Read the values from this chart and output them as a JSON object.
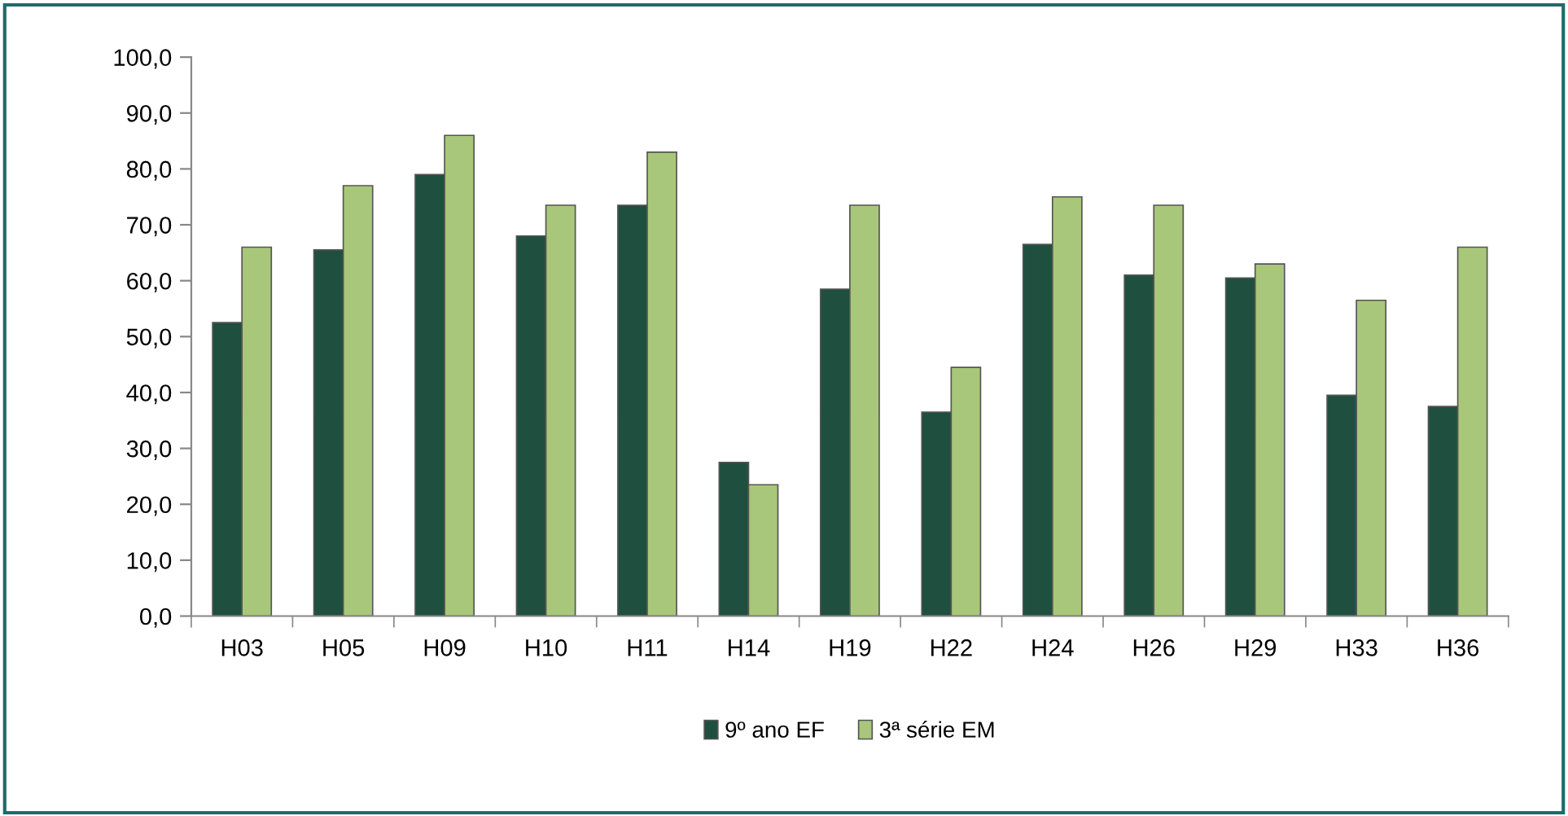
{
  "chart_data": {
    "type": "bar",
    "categories": [
      "H03",
      "H05",
      "H09",
      "H10",
      "H11",
      "H14",
      "H19",
      "H22",
      "H24",
      "H26",
      "H29",
      "H33",
      "H36"
    ],
    "series": [
      {
        "name": "9º ano EF",
        "color": "#1f4f3f",
        "values": [
          52.5,
          65.5,
          79,
          68,
          73.5,
          27.5,
          58.5,
          36.5,
          66.5,
          61,
          60.5,
          39.5,
          37.5
        ]
      },
      {
        "name": "3ª série EM",
        "color": "#a9c77a",
        "values": [
          66,
          77,
          86,
          73.5,
          83,
          23.5,
          73.5,
          44.5,
          75,
          73.5,
          63,
          56.5,
          66
        ]
      }
    ],
    "ylim": [
      0,
      100
    ],
    "yticks": [
      {
        "value": 0,
        "label": "0,0"
      },
      {
        "value": 10,
        "label": "10,0"
      },
      {
        "value": 20,
        "label": "20,0"
      },
      {
        "value": 30,
        "label": "30,0"
      },
      {
        "value": 40,
        "label": "40,0"
      },
      {
        "value": 50,
        "label": "50,0"
      },
      {
        "value": 60,
        "label": "60,0"
      },
      {
        "value": 70,
        "label": "70,0"
      },
      {
        "value": 80,
        "label": "80,0"
      },
      {
        "value": 90,
        "label": "90,0"
      },
      {
        "value": 100,
        "label": "100,0"
      }
    ],
    "grid": false,
    "legend": "bottom"
  }
}
